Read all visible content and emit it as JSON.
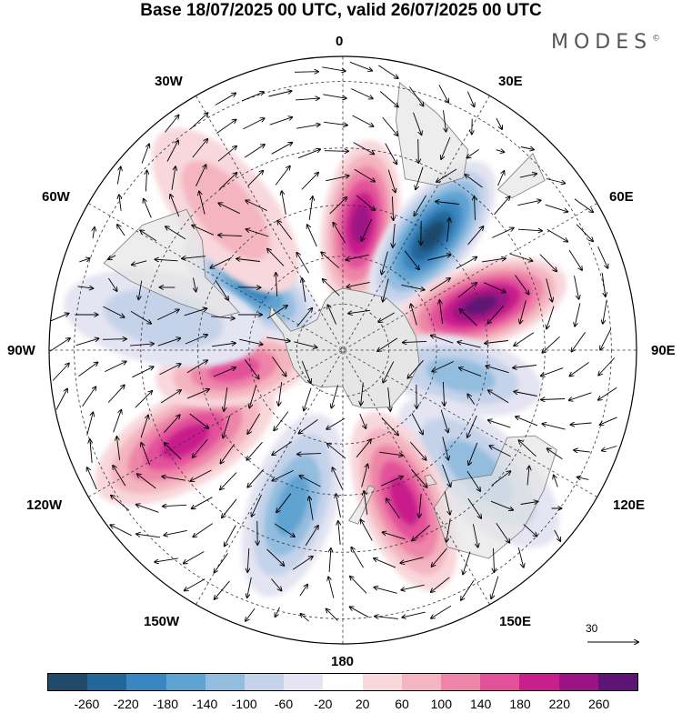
{
  "title": "Base 18/07/2025 00 UTC, valid 26/07/2025 00 UTC",
  "brand": {
    "name": "MODES",
    "mark": "©"
  },
  "map": {
    "projection": "south-polar-stereographic",
    "longitude_labels": {
      "top": "0",
      "top_left": "30W",
      "top_right": "30E",
      "upper_left": "60W",
      "upper_right": "60E",
      "left": "90W",
      "right": "90E",
      "lower_left": "120W",
      "lower_right": "120E",
      "bottom_left": "150W",
      "bottom_right": "150E",
      "bottom": "180"
    },
    "colors": {
      "land": "#e6e6e6",
      "land_edge": "#7a7a7a",
      "graticule": "#333333",
      "vector": "#000000"
    },
    "anomaly_centers": [
      {
        "sign": "positive",
        "lon": 8,
        "lat": -50,
        "value": 240
      },
      {
        "sign": "negative",
        "lon": 38,
        "lat": -45,
        "value": -260
      },
      {
        "sign": "positive",
        "lon": 72,
        "lat": -45,
        "value": 260
      },
      {
        "sign": "negative",
        "lon": 102,
        "lat": -52,
        "value": -120
      },
      {
        "sign": "negative",
        "lon": 132,
        "lat": -35,
        "value": -100
      },
      {
        "sign": "positive",
        "lon": 158,
        "lat": -40,
        "value": 180
      },
      {
        "sign": "negative",
        "lon": -162,
        "lat": -40,
        "value": -160
      },
      {
        "sign": "positive",
        "lon": -120,
        "lat": -35,
        "value": 180
      },
      {
        "sign": "positive",
        "lon": -100,
        "lat": -55,
        "value": 140
      },
      {
        "sign": "negative",
        "lon": -55,
        "lat": -55,
        "value": -180
      },
      {
        "sign": "negative",
        "lon": -80,
        "lat": -35,
        "value": -80
      },
      {
        "sign": "positive",
        "lon": -40,
        "lat": -35,
        "value": 60
      }
    ]
  },
  "reference_vector": {
    "value": "30"
  },
  "colorbar": {
    "colors": [
      "#1f4a6b",
      "#22669a",
      "#3a86c0",
      "#5ea3d2",
      "#93bddf",
      "#c4d3ea",
      "#e4e4f2",
      "#ffffff",
      "#f8d8dc",
      "#f4b5c0",
      "#ee85a8",
      "#e3519b",
      "#c91f8c",
      "#9c1483",
      "#5e1475"
    ],
    "ticks": [
      "-260",
      "-220",
      "-180",
      "-140",
      "-100",
      "-60",
      "-20",
      "20",
      "60",
      "100",
      "140",
      "180",
      "220",
      "260"
    ]
  }
}
